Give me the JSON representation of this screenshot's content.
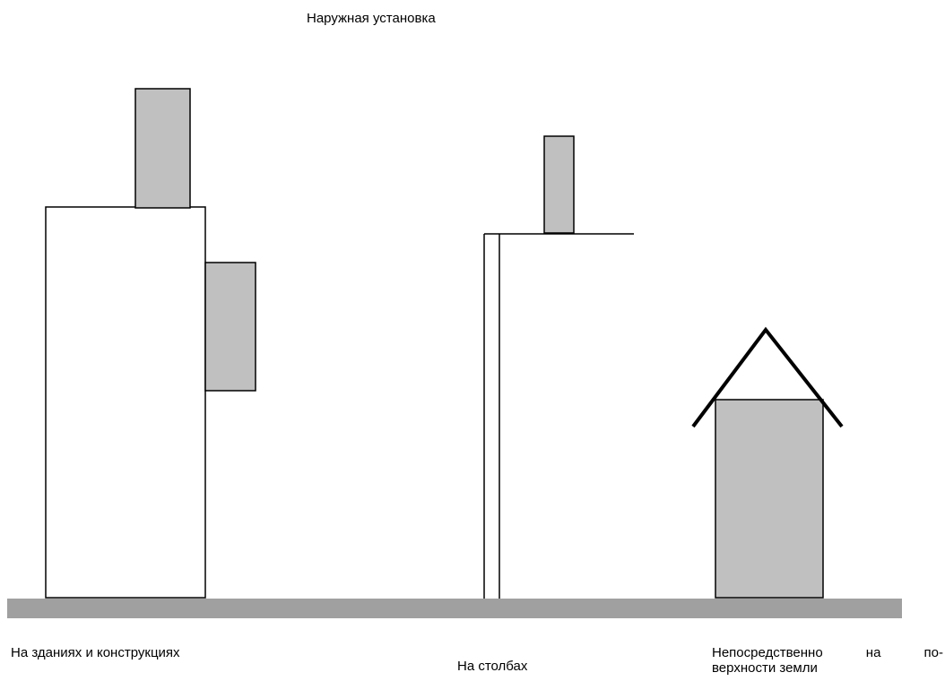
{
  "title": "Наружная установка",
  "labels": {
    "buildings": "На зданиях и конструкциях",
    "poles": "На столбах",
    "ground_line1_words": [
      "Непосредственно",
      "на",
      "по-"
    ],
    "ground_line2": "верхности земли"
  },
  "colors": {
    "equipment_fill": "#c0c0c0",
    "ground_fill": "#a0a0a0",
    "outline": "#000000",
    "background": "#ffffff"
  }
}
